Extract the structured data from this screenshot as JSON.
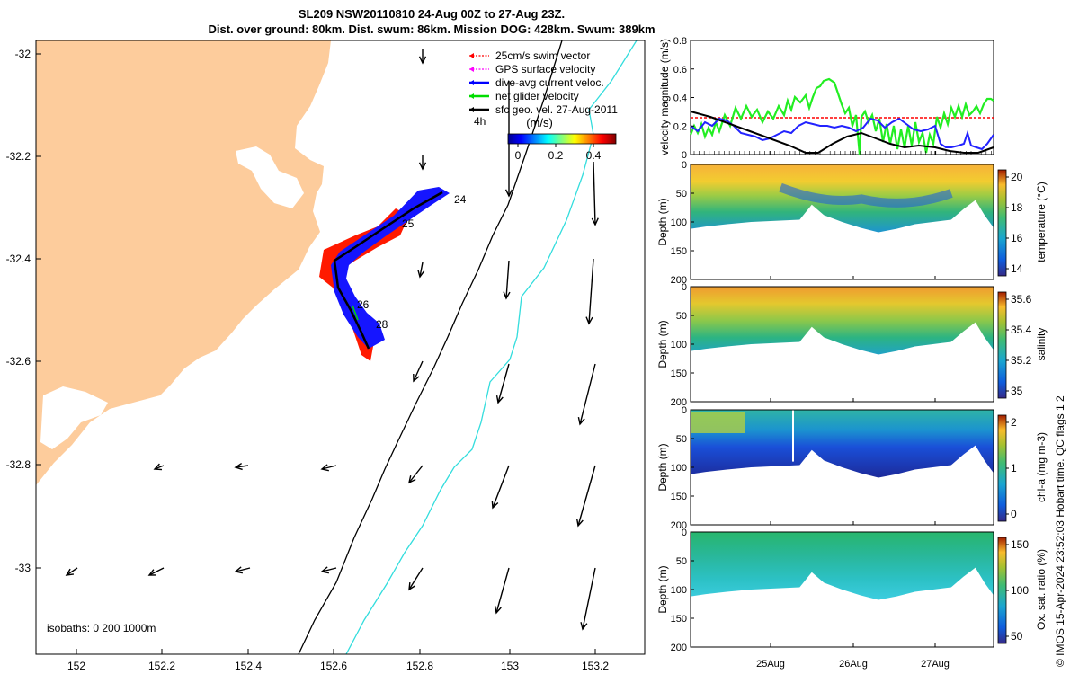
{
  "header": {
    "line1": "SL209 NSW20110810 24-Aug 00Z to 27-Aug 23Z.",
    "line2": "Dist. over ground: 80km. Dist. swum: 86km. Mission DOG: 428km. Swum: 389km"
  },
  "side_note": "© IMOS 15-Apr-2024 23:52:03 Hobart time. QC flags 1  2",
  "map": {
    "x_ticks": [
      "152",
      "152.2",
      "152.4",
      "152.6",
      "152.8",
      "153",
      "153.2"
    ],
    "y_ticks": [
      "-32",
      "-32.2",
      "-32.4",
      "-32.6",
      "-32.8",
      "-33"
    ],
    "xlim": [
      151.9,
      153.3
    ],
    "ylim": [
      -33.2,
      -31.97
    ],
    "isobaths_label": "isobaths: 0   200  1000m",
    "legend": [
      {
        "label": "25cm/s swim vector",
        "color": "#ff0000"
      },
      {
        "label": "GPS surface velocity",
        "color": "#ff00ff"
      },
      {
        "label": "dive-avg current veloc.",
        "color": "#0000ff"
      },
      {
        "label": "net glider velocity",
        "color": "#00dd00"
      },
      {
        "label": "sfc geo. vel. 27-Aug-2011",
        "color": "#000000"
      }
    ],
    "interval_label": "4h",
    "colorbar": {
      "label": "(m/s)",
      "ticks": [
        "0",
        "0.2",
        "0.4"
      ]
    },
    "day_labels": [
      "24",
      "25",
      "26",
      "28"
    ],
    "land_color": "#fdcc9c",
    "isobath_200_color": "#000000",
    "isobath_1000_color": "#33dddd"
  },
  "panels": {
    "xticks": [
      "25Aug",
      "26Aug",
      "27Aug"
    ],
    "velocity": {
      "ylabel": "velocity magnitude (m/s)",
      "yticks": [
        "0",
        "0.2",
        "0.4",
        "0.6",
        "0.8"
      ],
      "ylim": [
        0,
        0.8
      ]
    },
    "sections": [
      {
        "key": "temperature",
        "ylabel": "Depth (m)",
        "cbar_label": "temperature (°C)",
        "cbar_ticks": [
          "14",
          "16",
          "18",
          "20"
        ]
      },
      {
        "key": "salinity",
        "ylabel": "Depth (m)",
        "cbar_label": "salinity",
        "cbar_ticks": [
          "35",
          "35.2",
          "35.4",
          "35.6"
        ]
      },
      {
        "key": "chla",
        "ylabel": "Depth (m)",
        "cbar_label": "chl-a (mg m-3)",
        "cbar_ticks": [
          "0",
          "1",
          "2"
        ]
      },
      {
        "key": "oxsat",
        "ylabel": "Depth (m)",
        "cbar_label": "Ox. sat. ratio (%)",
        "cbar_ticks": [
          "50",
          "100",
          "150"
        ]
      }
    ],
    "depth_ticks": [
      "0",
      "50",
      "100",
      "150",
      "200"
    ]
  }
}
